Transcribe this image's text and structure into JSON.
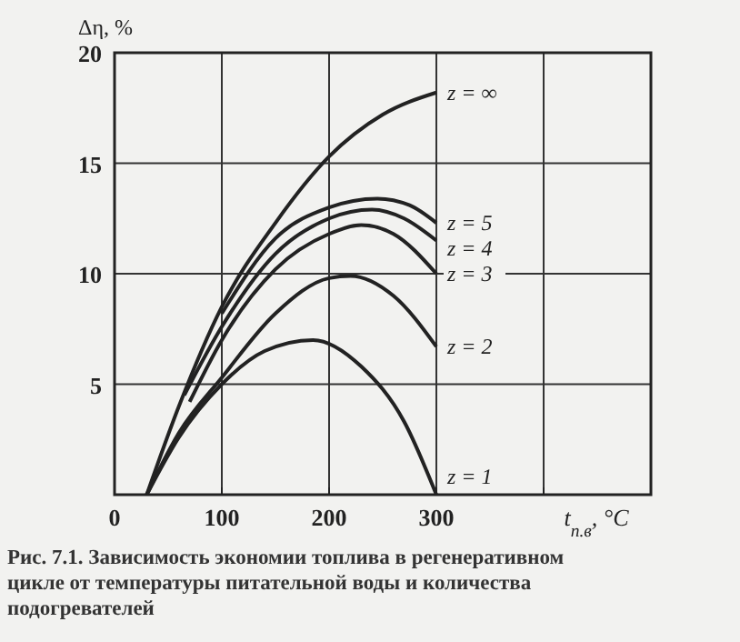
{
  "chart_data": {
    "type": "line",
    "xlabel": "t$_{п.в}$, °C",
    "ylabel": "Δη, %",
    "xlim": [
      0,
      500
    ],
    "xticks": [
      0,
      100,
      200,
      300,
      {
        "value": 400,
        "label": null
      }
    ],
    "ylim": [
      0,
      20
    ],
    "yticks": [
      5,
      10,
      15,
      20
    ],
    "grid": true,
    "legend": false,
    "marker": "none",
    "line_style": "solid",
    "series": [
      {
        "name": "z = ∞",
        "color": "#222222",
        "x": [
          30,
          60,
          100,
          150,
          200,
          250,
          300
        ],
        "values": [
          0,
          4,
          8.5,
          12.3,
          15.3,
          17.2,
          18.2
        ]
      },
      {
        "name": "z = 5",
        "color": "#222222",
        "x": [
          100,
          150,
          200,
          245,
          275,
          300
        ],
        "values": [
          8.2,
          11.6,
          13,
          13.4,
          13.1,
          12.3
        ]
      },
      {
        "name": "z = 4",
        "color": "#222222",
        "x": [
          65,
          100,
          150,
          200,
          240,
          270,
          300
        ],
        "values": [
          4.5,
          7.6,
          10.9,
          12.5,
          12.9,
          12.5,
          11.5
        ]
      },
      {
        "name": "z = 3",
        "color": "#222222",
        "x": [
          70,
          100,
          150,
          200,
          230,
          260,
          300
        ],
        "values": [
          4.2,
          7,
          10.2,
          11.8,
          12.2,
          11.8,
          10
        ]
      },
      {
        "name": "z = 2",
        "color": "#222222",
        "x": [
          30,
          60,
          100,
          150,
          200,
          220,
          260,
          300
        ],
        "values": [
          0,
          2.8,
          5.3,
          8.2,
          9.8,
          9.9,
          9,
          6.7
        ]
      },
      {
        "name": "z = 1",
        "color": "#222222",
        "x": [
          30,
          60,
          100,
          140,
          185,
          230,
          270,
          300
        ],
        "values": [
          0,
          2.6,
          5,
          6.5,
          7,
          5.8,
          3.3,
          0
        ]
      }
    ],
    "annotations": [
      "Рис. 7.1. Зависимость экономии топлива в регенеративном цикле от температуры питательной воды и количества подогревателей"
    ]
  }
}
